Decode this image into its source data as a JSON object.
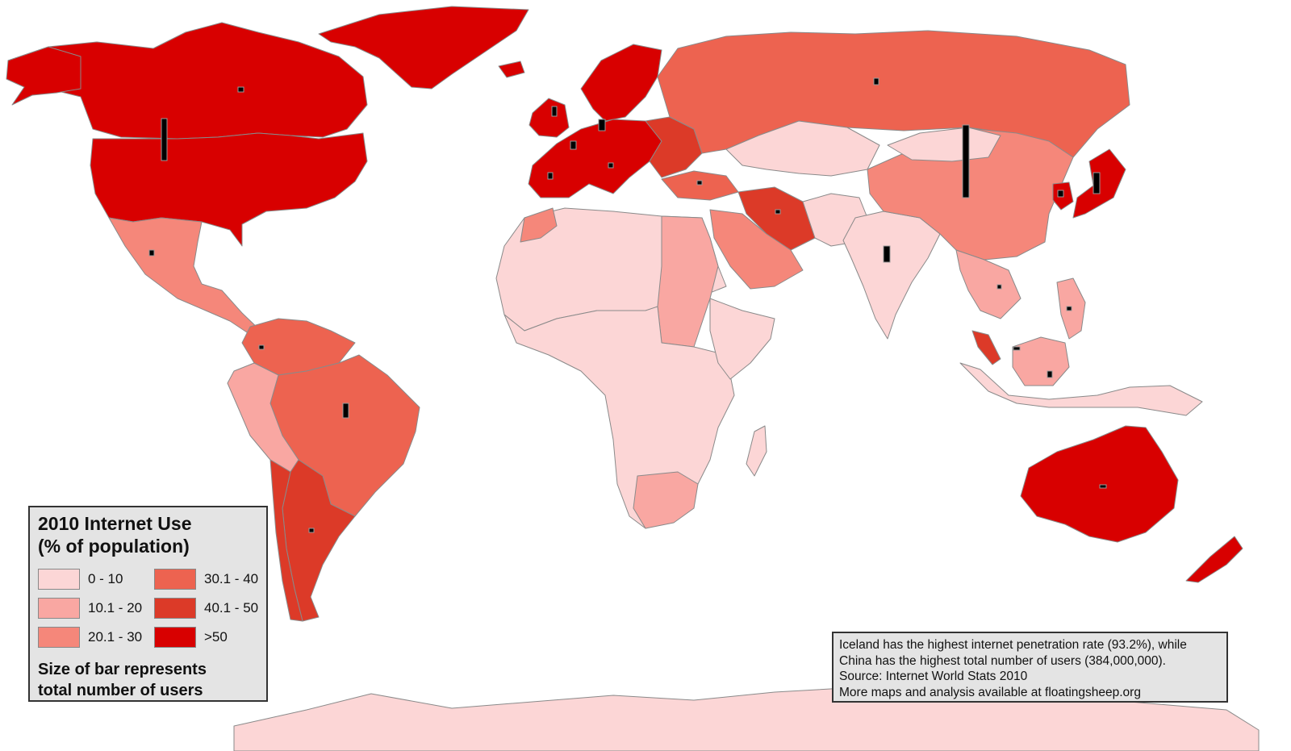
{
  "legend": {
    "title_line1": "2010 Internet Use",
    "title_line2": "(% of population)",
    "classes": [
      {
        "label": "0 - 10",
        "color": "#fcd6d6"
      },
      {
        "label": "10.1 - 20",
        "color": "#f9a7a2"
      },
      {
        "label": "20.1 - 30",
        "color": "#f5877a"
      },
      {
        "label": "30.1 - 40",
        "color": "#ed6350"
      },
      {
        "label": "40.1 - 50",
        "color": "#dc3a28"
      },
      {
        "label": ">50",
        "color": "#d80000"
      }
    ],
    "note_line1": "Size of bar represents",
    "note_line2": "total number of users"
  },
  "source": {
    "line1": "Iceland has the highest internet penetration rate (93.2%), while",
    "line2": "China has the highest total number of users (384,000,000).",
    "line3": "Source: Internet World Stats 2010",
    "line4": "More maps and analysis available at floatingsheep.org"
  },
  "colors": {
    "class0": "#fcd6d6",
    "class1": "#f9a7a2",
    "class2": "#f5877a",
    "class3": "#ed6350",
    "class4": "#dc3a28",
    "class5": "#d80000",
    "bar": "#000000",
    "border": "#8a8a8a"
  }
}
